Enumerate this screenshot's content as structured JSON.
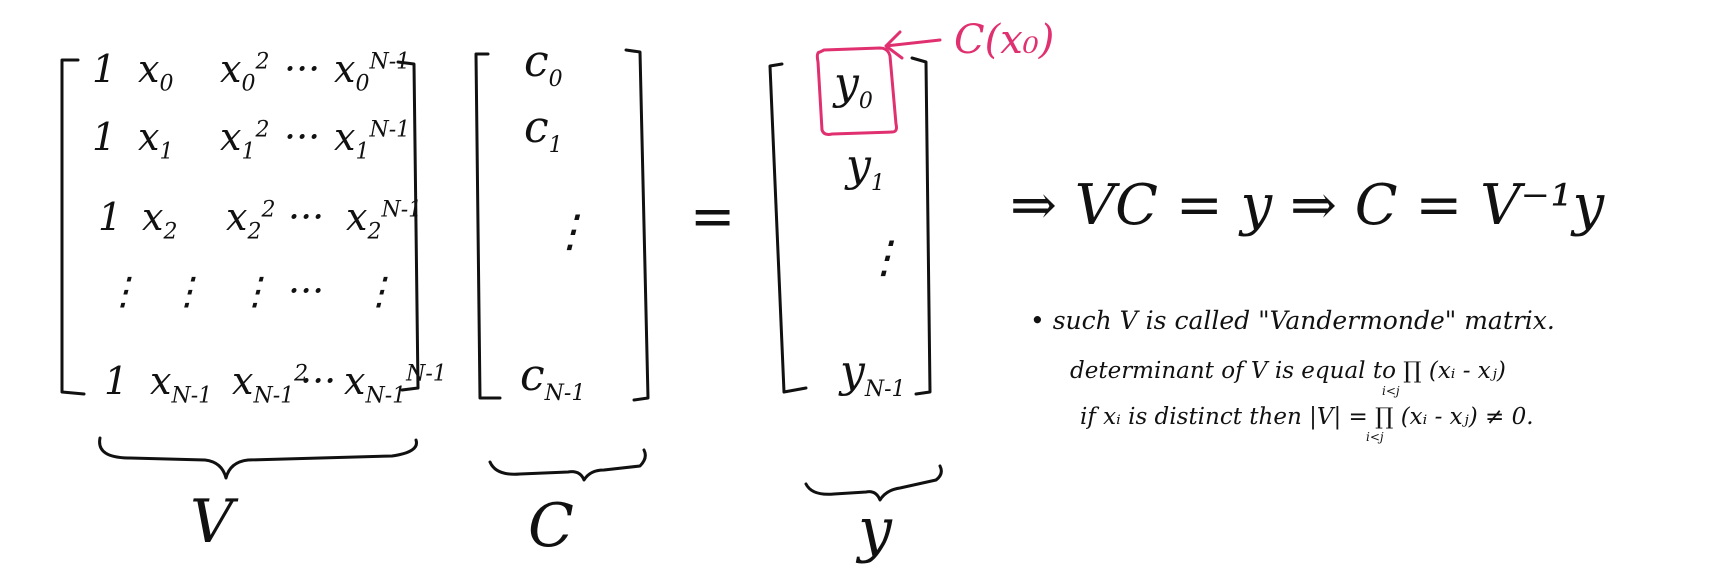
{
  "colors": {
    "ink": "#111111",
    "annotation": "#e0306f"
  },
  "matrix_V": {
    "rows": [
      [
        {
          "base": "1",
          "sub": "",
          "sup": ""
        },
        {
          "base": "x",
          "sub": "0",
          "sup": ""
        },
        {
          "base": "x",
          "sub": "0",
          "sup": "2"
        },
        {
          "base": "···",
          "sub": "",
          "sup": ""
        },
        {
          "base": "x",
          "sub": "0",
          "sup": "N-1"
        }
      ],
      [
        {
          "base": "1",
          "sub": "",
          "sup": ""
        },
        {
          "base": "x",
          "sub": "1",
          "sup": ""
        },
        {
          "base": "x",
          "sub": "1",
          "sup": "2"
        },
        {
          "base": "···",
          "sub": "",
          "sup": ""
        },
        {
          "base": "x",
          "sub": "1",
          "sup": "N-1"
        }
      ],
      [
        {
          "base": "1",
          "sub": "",
          "sup": ""
        },
        {
          "base": "x",
          "sub": "2",
          "sup": ""
        },
        {
          "base": "x",
          "sub": "2",
          "sup": "2"
        },
        {
          "base": "···",
          "sub": "",
          "sup": ""
        },
        {
          "base": "x",
          "sub": "2",
          "sup": "N-1"
        }
      ],
      [
        {
          "base": "⋮",
          "sub": "",
          "sup": ""
        },
        {
          "base": "⋮",
          "sub": "",
          "sup": ""
        },
        {
          "base": "⋮",
          "sub": "",
          "sup": ""
        },
        {
          "base": "···",
          "sub": "",
          "sup": ""
        },
        {
          "base": "⋮",
          "sub": "",
          "sup": ""
        }
      ],
      [
        {
          "base": "1",
          "sub": "",
          "sup": ""
        },
        {
          "base": "x",
          "sub": "N-1",
          "sup": ""
        },
        {
          "base": "x",
          "sub": "N-1",
          "sup": "2"
        },
        {
          "base": "···",
          "sub": "",
          "sup": ""
        },
        {
          "base": "x",
          "sub": "N-1",
          "sup": "N-1"
        }
      ]
    ],
    "label": "V"
  },
  "vector_C": {
    "entries": [
      {
        "base": "c",
        "sub": "0"
      },
      {
        "base": "c",
        "sub": "1"
      },
      {
        "base": "⋮",
        "sub": ""
      },
      {
        "base": "c",
        "sub": "N-1"
      }
    ],
    "label": "C"
  },
  "equals_sign": "=",
  "vector_y": {
    "entries": [
      {
        "base": "y",
        "sub": "0"
      },
      {
        "base": "y",
        "sub": "1"
      },
      {
        "base": "⋮",
        "sub": ""
      },
      {
        "base": "y",
        "sub": "N-1"
      }
    ],
    "label": "y"
  },
  "annotation": {
    "text": "C(x₀)"
  },
  "derivation": "⇒ VC = y ⇒ C = V⁻¹y",
  "notes": [
    "• such V is called \"Vandermonde\" matrix.",
    "determinant of V is equal to ∏ (xᵢ - xⱼ)",
    "if xᵢ is distinct then |V| = ∏ (xᵢ - xⱼ) ≠ 0."
  ],
  "product_index": "i<j"
}
